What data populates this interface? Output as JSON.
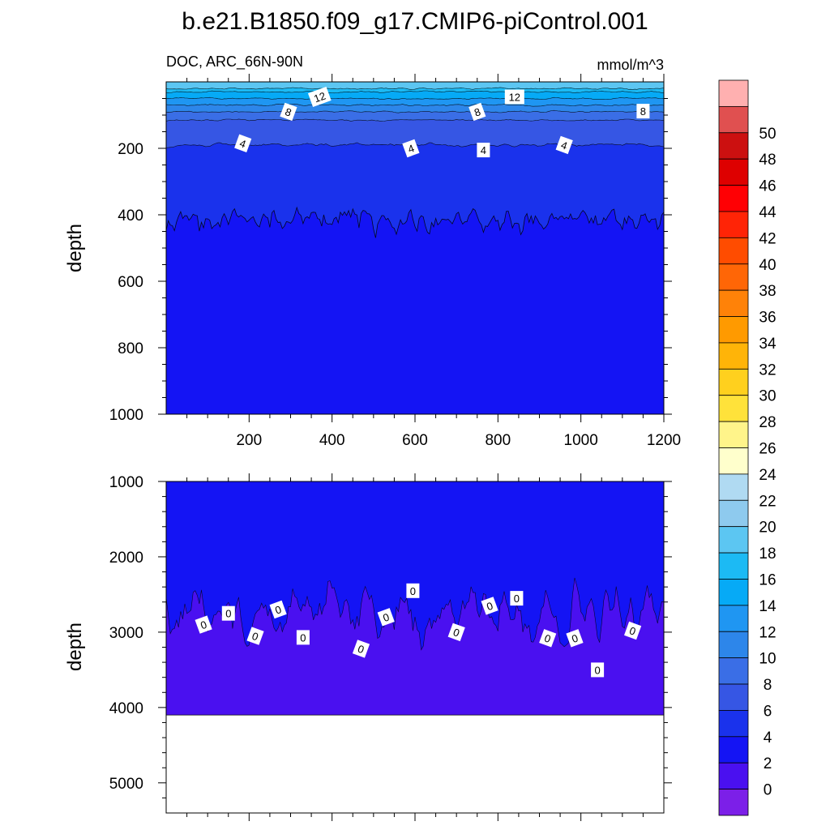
{
  "title": "b.e21.B1850.f09_g17.CMIP6-piControl.001",
  "colors": {
    "levels": [
      "#7c1fe8",
      "#4a10f0",
      "#1414f4",
      "#1a32ec",
      "#3656e4",
      "#3a6ee6",
      "#2d86ea",
      "#1f96f2",
      "#06aaf6",
      "#1cbaf4",
      "#5cc6f2",
      "#8ecaee",
      "#b0daf2",
      "#ffffcc",
      "#fff48a",
      "#ffe23a",
      "#ffd01e",
      "#ffb408",
      "#ff9a00",
      "#ff8208",
      "#ff6606",
      "#ff4c00",
      "#ff2406",
      "#ff0004",
      "#de0000",
      "#cc1010",
      "#e05050",
      "#ffb0b0"
    ]
  },
  "chart_data": [
    {
      "type": "contour",
      "panel": "upper",
      "left_label": "DOC, ARC_66N-90N",
      "right_label": "mmol/m^3",
      "ylabel": "depth",
      "xlim": [
        0,
        1200
      ],
      "ylim": [
        1000,
        0
      ],
      "x_ticks": [
        200,
        400,
        600,
        800,
        1000,
        1200
      ],
      "y_ticks": [
        200,
        400,
        600,
        800,
        1000
      ],
      "approx_level_depths": [
        {
          "level": 16,
          "depth": 20
        },
        {
          "level": 14,
          "depth": 30
        },
        {
          "level": 12,
          "depth": 50
        },
        {
          "level": 10,
          "depth": 70
        },
        {
          "level": 8,
          "depth": 90
        },
        {
          "level": 6,
          "depth": 115
        },
        {
          "level": 4,
          "depth": 190
        },
        {
          "level": 2,
          "depth": 410
        }
      ],
      "contour_labels": [
        {
          "text": "12",
          "x": 370,
          "depth": 45
        },
        {
          "text": "12",
          "x": 840,
          "depth": 45
        },
        {
          "text": "8",
          "x": 295,
          "depth": 90
        },
        {
          "text": "8",
          "x": 750,
          "depth": 90
        },
        {
          "text": "8",
          "x": 1150,
          "depth": 88
        },
        {
          "text": "4",
          "x": 185,
          "depth": 185
        },
        {
          "text": "4",
          "x": 590,
          "depth": 200
        },
        {
          "text": "4",
          "x": 765,
          "depth": 205
        },
        {
          "text": "4",
          "x": 960,
          "depth": 190
        }
      ]
    },
    {
      "type": "contour",
      "panel": "lower",
      "ylabel": "depth",
      "xlim": [
        0,
        1200
      ],
      "ylim": [
        5400,
        1000
      ],
      "y_ticks": [
        1000,
        2000,
        3000,
        4000,
        5000
      ],
      "bottom_depth": 4100,
      "approx_level_depths": [
        {
          "level": 0,
          "depth": 2750
        }
      ],
      "contour_labels": [
        {
          "text": "0",
          "x": 90,
          "depth": 2900
        },
        {
          "text": "0",
          "x": 150,
          "depth": 2750
        },
        {
          "text": "0",
          "x": 215,
          "depth": 3050
        },
        {
          "text": "0",
          "x": 270,
          "depth": 2700
        },
        {
          "text": "0",
          "x": 330,
          "depth": 3070
        },
        {
          "text": "0",
          "x": 470,
          "depth": 3220
        },
        {
          "text": "0",
          "x": 530,
          "depth": 2800
        },
        {
          "text": "0",
          "x": 595,
          "depth": 2450
        },
        {
          "text": "0",
          "x": 700,
          "depth": 3000
        },
        {
          "text": "0",
          "x": 780,
          "depth": 2650
        },
        {
          "text": "0",
          "x": 845,
          "depth": 2550
        },
        {
          "text": "0",
          "x": 920,
          "depth": 3080
        },
        {
          "text": "0",
          "x": 985,
          "depth": 3080
        },
        {
          "text": "0",
          "x": 1040,
          "depth": 3500
        },
        {
          "text": "0",
          "x": 1125,
          "depth": 2980
        }
      ]
    }
  ],
  "colorbar": {
    "labels": [
      "0",
      "2",
      "4",
      "6",
      "8",
      "10",
      "12",
      "14",
      "16",
      "18",
      "20",
      "22",
      "24",
      "26",
      "28",
      "30",
      "32",
      "34",
      "36",
      "38",
      "40",
      "42",
      "44",
      "46",
      "48",
      "50"
    ]
  }
}
